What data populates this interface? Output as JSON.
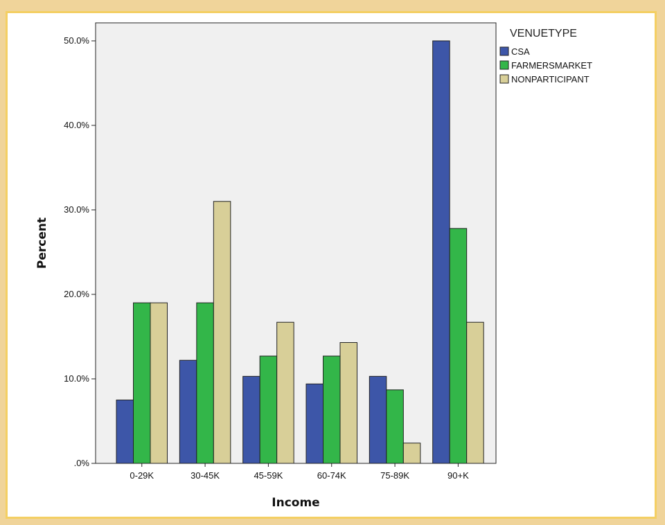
{
  "chart_data": {
    "type": "bar",
    "title": "",
    "xlabel": "Income",
    "ylabel": "Percent",
    "categories": [
      "0-29K",
      "30-45K",
      "45-59K",
      "60-74K",
      "75-89K",
      "90+K"
    ],
    "ylim": [
      0,
      50
    ],
    "yticks": [
      0,
      10,
      20,
      30,
      40,
      50
    ],
    "ytick_labels": [
      ".0%",
      "10.0%",
      "20.0%",
      "30.0%",
      "40.0%",
      "50.0%"
    ],
    "grid": false,
    "legend_title": "VENUETYPE",
    "legend_position": "top-right",
    "series": [
      {
        "name": "CSA",
        "color": "#3d56a8",
        "values": [
          7.5,
          12.2,
          10.3,
          9.4,
          10.3,
          50.0
        ]
      },
      {
        "name": "FARMERSMARKET",
        "color": "#33b649",
        "values": [
          19.0,
          19.0,
          12.7,
          12.7,
          8.7,
          27.8
        ]
      },
      {
        "name": "NONPARTICIPANT",
        "color": "#d8cf98",
        "values": [
          19.0,
          31.0,
          16.7,
          14.3,
          2.4,
          16.7
        ]
      }
    ]
  }
}
